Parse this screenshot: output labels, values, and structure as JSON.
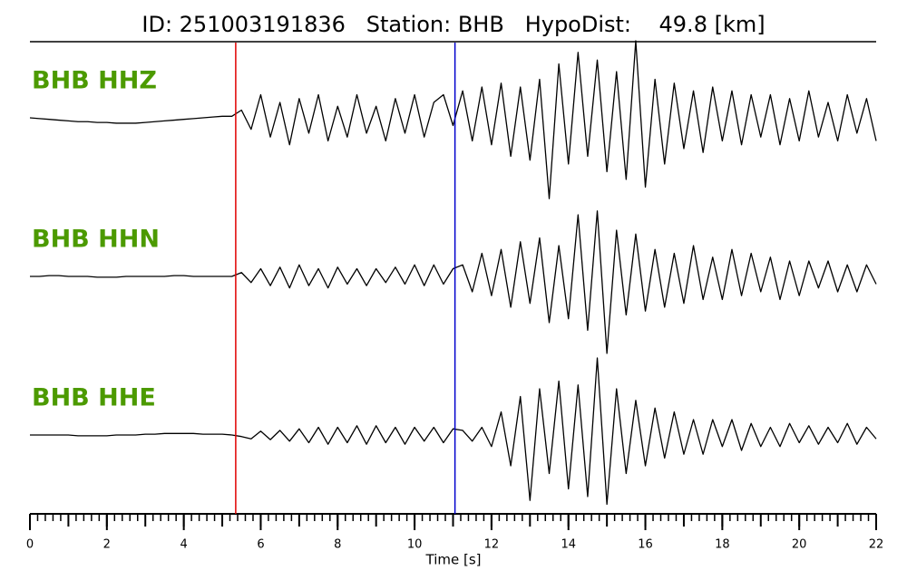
{
  "chart_data": {
    "type": "waveform",
    "title": "ID: 251003191836   Station: BHB   HypoDist:    49.8 [km]",
    "xlabel": "Time [s]",
    "xlim": [
      0,
      22
    ],
    "xticks": [
      0,
      2,
      4,
      6,
      8,
      10,
      12,
      14,
      16,
      18,
      20,
      22
    ],
    "xminor_tick_step": 0.2,
    "picks": [
      {
        "time": 5.35,
        "color": "#e00000"
      },
      {
        "time": 11.05,
        "color": "#0000cc"
      }
    ],
    "x": [
      0,
      0.25,
      0.5,
      0.75,
      1,
      1.25,
      1.5,
      1.75,
      2,
      2.25,
      2.5,
      2.75,
      3,
      3.25,
      3.5,
      3.75,
      4,
      4.25,
      4.5,
      4.75,
      5,
      5.25,
      5.5,
      5.75,
      6,
      6.25,
      6.5,
      6.75,
      7,
      7.25,
      7.5,
      7.75,
      8,
      8.25,
      8.5,
      8.75,
      9,
      9.25,
      9.5,
      9.75,
      10,
      10.25,
      10.5,
      10.75,
      11,
      11.25,
      11.5,
      11.75,
      12,
      12.25,
      12.5,
      12.75,
      13,
      13.25,
      13.5,
      13.75,
      14,
      14.25,
      14.5,
      14.75,
      15,
      15.25,
      15.5,
      15.75,
      16,
      16.25,
      16.5,
      16.75,
      17,
      17.25,
      17.5,
      17.75,
      18,
      18.25,
      18.5,
      18.75,
      19,
      19.25,
      19.5,
      19.75,
      20,
      20.25,
      20.5,
      20.75,
      21,
      21.25,
      21.5,
      21.75,
      22
    ],
    "series": [
      {
        "name": "BHB HHZ",
        "color": "#000000",
        "label_color": "#4c9a00",
        "values": [
          0,
          -0.01,
          -0.02,
          -0.03,
          -0.04,
          -0.05,
          -0.05,
          -0.06,
          -0.06,
          -0.07,
          -0.07,
          -0.07,
          -0.06,
          -0.05,
          -0.04,
          -0.03,
          -0.02,
          -0.01,
          0.0,
          0.01,
          0.02,
          0.02,
          0.1,
          -0.15,
          0.3,
          -0.25,
          0.2,
          -0.35,
          0.25,
          -0.2,
          0.3,
          -0.3,
          0.15,
          -0.25,
          0.3,
          -0.2,
          0.15,
          -0.3,
          0.25,
          -0.2,
          0.3,
          -0.25,
          0.2,
          0.3,
          -0.1,
          0.35,
          -0.3,
          0.4,
          -0.35,
          0.45,
          -0.5,
          0.4,
          -0.55,
          0.5,
          -1.05,
          0.7,
          -0.6,
          0.85,
          -0.5,
          0.75,
          -0.7,
          0.6,
          -0.8,
          1.0,
          -0.9,
          0.5,
          -0.6,
          0.45,
          -0.4,
          0.35,
          -0.45,
          0.4,
          -0.3,
          0.35,
          -0.35,
          0.3,
          -0.25,
          0.3,
          -0.35,
          0.25,
          -0.3,
          0.35,
          -0.25,
          0.2,
          -0.3,
          0.3,
          -0.2,
          0.25,
          -0.3
        ]
      },
      {
        "name": "BHB HHN",
        "color": "#000000",
        "label_color": "#4c9a00",
        "values": [
          0,
          0,
          0.01,
          0.01,
          0,
          0,
          0,
          -0.01,
          -0.01,
          -0.01,
          0,
          0,
          0,
          0,
          0,
          0.01,
          0.01,
          0,
          0,
          0,
          0,
          0,
          0.05,
          -0.08,
          0.1,
          -0.12,
          0.12,
          -0.15,
          0.15,
          -0.12,
          0.1,
          -0.15,
          0.12,
          -0.1,
          0.1,
          -0.12,
          0.1,
          -0.08,
          0.12,
          -0.1,
          0.15,
          -0.12,
          0.15,
          -0.1,
          0.1,
          0.15,
          -0.2,
          0.3,
          -0.25,
          0.35,
          -0.4,
          0.45,
          -0.35,
          0.5,
          -0.6,
          0.4,
          -0.55,
          0.8,
          -0.7,
          0.85,
          -1.0,
          0.6,
          -0.5,
          0.55,
          -0.45,
          0.35,
          -0.4,
          0.3,
          -0.35,
          0.4,
          -0.3,
          0.25,
          -0.3,
          0.35,
          -0.25,
          0.3,
          -0.2,
          0.25,
          -0.3,
          0.2,
          -0.25,
          0.2,
          -0.15,
          0.2,
          -0.2,
          0.15,
          -0.2,
          0.15,
          -0.1
        ]
      },
      {
        "name": "BHB HHE",
        "color": "#000000",
        "label_color": "#4c9a00",
        "values": [
          0,
          0,
          0,
          0,
          0,
          -0.01,
          -0.01,
          -0.01,
          -0.01,
          0,
          0,
          0,
          0.01,
          0.01,
          0.02,
          0.02,
          0.02,
          0.02,
          0.01,
          0.01,
          0.01,
          0,
          -0.02,
          -0.05,
          0.05,
          -0.06,
          0.06,
          -0.08,
          0.08,
          -0.1,
          0.1,
          -0.12,
          0.1,
          -0.1,
          0.12,
          -0.12,
          0.12,
          -0.1,
          0.1,
          -0.12,
          0.1,
          -0.08,
          0.1,
          -0.1,
          0.08,
          0.06,
          -0.08,
          0.1,
          -0.15,
          0.3,
          -0.4,
          0.5,
          -0.85,
          0.6,
          -0.5,
          0.7,
          -0.7,
          0.65,
          -0.8,
          1.0,
          -0.9,
          0.6,
          -0.5,
          0.45,
          -0.4,
          0.35,
          -0.3,
          0.3,
          -0.25,
          0.2,
          -0.25,
          0.2,
          -0.15,
          0.2,
          -0.2,
          0.15,
          -0.15,
          0.1,
          -0.15,
          0.15,
          -0.1,
          0.12,
          -0.12,
          0.1,
          -0.1,
          0.15,
          -0.12,
          0.1,
          -0.05
        ]
      }
    ]
  }
}
